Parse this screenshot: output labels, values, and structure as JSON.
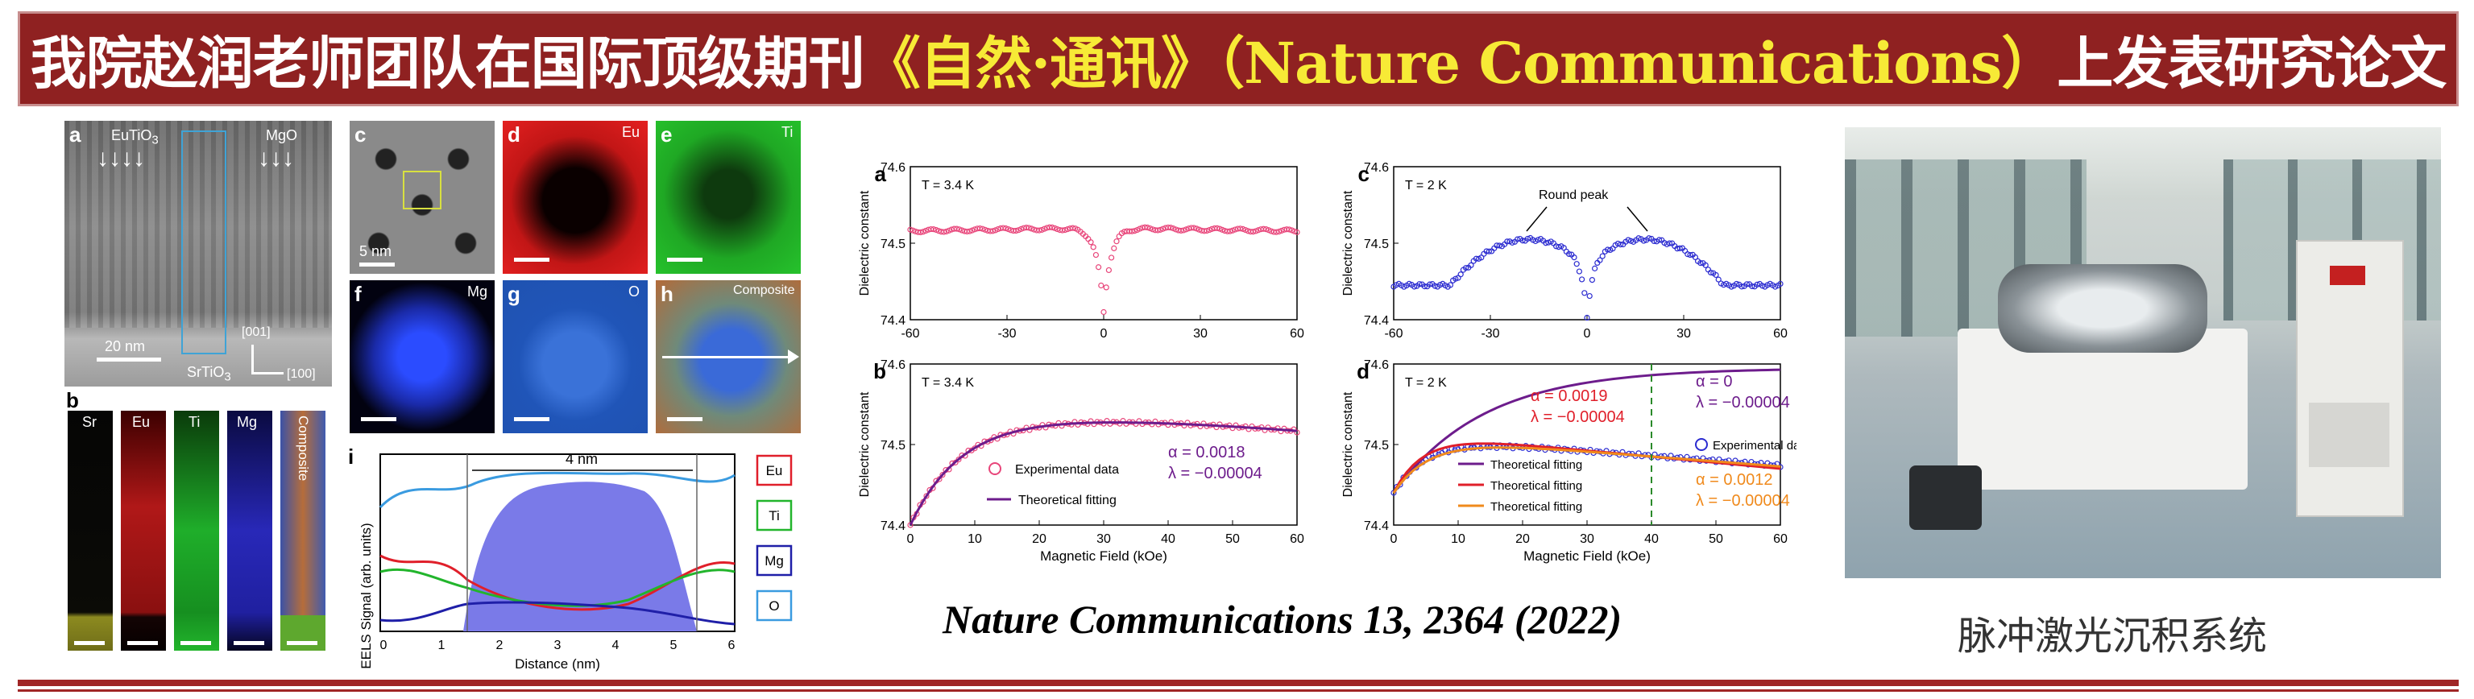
{
  "banner": {
    "title_part1": "我院赵润老师团队在国际顶级期刊",
    "title_journal_cn": "《自然·通讯》",
    "title_journal_en": "（Nature Communications）",
    "title_part2": "上发表研究论文"
  },
  "figure_left": {
    "panel_a": {
      "label": "a",
      "eutio3": "EuTiO",
      "mgo": "MgO",
      "srtio3": "SrTiO",
      "scale": "20 nm",
      "dir1": "[001]",
      "dir2": "[100]"
    },
    "panel_b": {
      "label": "b",
      "strips": [
        "Sr",
        "Eu",
        "Ti",
        "Mg",
        "Composite"
      ]
    },
    "panel_c": {
      "label": "c",
      "scale": "5 nm"
    },
    "panel_d": {
      "label": "d",
      "element": "Eu"
    },
    "panel_e": {
      "label": "e",
      "element": "Ti"
    },
    "panel_f": {
      "label": "f",
      "element": "Mg"
    },
    "panel_g": {
      "label": "g",
      "element": "O"
    },
    "panel_h": {
      "label": "h",
      "element": "Composite"
    },
    "panel_i": {
      "label": "i",
      "width_label": "4 nm",
      "ylabel": "EELS Signal (arb. units)",
      "xlabel": "Distance (nm)",
      "xticks": [
        "0",
        "1",
        "2",
        "3",
        "4",
        "5",
        "6"
      ],
      "legend": [
        "Eu",
        "Ti",
        "Mg",
        "O"
      ]
    }
  },
  "chart_data": [
    {
      "id": "a",
      "type": "scatter",
      "annotation": "T = 3.4 K",
      "ylabel": "Dielectric constant",
      "xlim": [
        -60,
        60
      ],
      "ylim": [
        74.4,
        74.6
      ],
      "xticks": [
        "-60",
        "-30",
        "0",
        "30",
        "60"
      ],
      "yticks": [
        "74.4",
        "74.5",
        "74.6"
      ]
    },
    {
      "id": "b",
      "type": "line",
      "annotation": "T = 3.4 K",
      "ylabel": "Dielectric constant",
      "xlabel": "Magnetic Field (kOe)",
      "xlim": [
        0,
        60
      ],
      "ylim": [
        74.4,
        74.6
      ],
      "xticks": [
        "0",
        "10",
        "20",
        "30",
        "40",
        "50",
        "60"
      ],
      "yticks": [
        "74.4",
        "74.5",
        "74.6"
      ],
      "legend": [
        "Experimental data",
        "Theoretical fitting"
      ],
      "alpha": "α = 0.0018",
      "lambda": "λ = −0.00004"
    },
    {
      "id": "c",
      "type": "scatter",
      "annotation": "T = 2 K",
      "peak_label": "Round  peak",
      "ylabel": "Dielectric constant",
      "xlim": [
        -60,
        60
      ],
      "ylim": [
        74.4,
        74.6
      ],
      "xticks": [
        "-60",
        "-30",
        "0",
        "30",
        "60"
      ],
      "yticks": [
        "74.4",
        "74.5",
        "74.6"
      ]
    },
    {
      "id": "d",
      "type": "line",
      "annotation": "T = 2 K",
      "ylabel": "Dielectric constant",
      "xlabel": "Magnetic Field (kOe)",
      "xlim": [
        0,
        60
      ],
      "ylim": [
        74.4,
        74.6
      ],
      "xticks": [
        "0",
        "10",
        "20",
        "30",
        "40",
        "50",
        "60"
      ],
      "yticks": [
        "74.4",
        "74.5",
        "74.6"
      ],
      "legend": [
        "Experimental data",
        "Theoretical fitting",
        "Theoretical fitting",
        "Theoretical fitting"
      ],
      "fit_purple": {
        "alpha": "α = 0",
        "lambda": "λ = −0.00004"
      },
      "fit_red": {
        "alpha": "α = 0.0019",
        "lambda": "λ = −0.00004"
      },
      "fit_orange": {
        "alpha": "α = 0.0012",
        "lambda": "λ = −0.00004"
      }
    }
  ],
  "citation": "Nature Communications 13, 2364 (2022)",
  "photo_caption": "脉冲激光沉积系统",
  "colors": {
    "banner": "#8f2121",
    "journal_yellow": "#f7ea36",
    "pink": "#e8457a",
    "blue": "#2b2bd0",
    "purple": "#6d1c8c",
    "red": "#e01f2a",
    "orange": "#f08a1c"
  }
}
